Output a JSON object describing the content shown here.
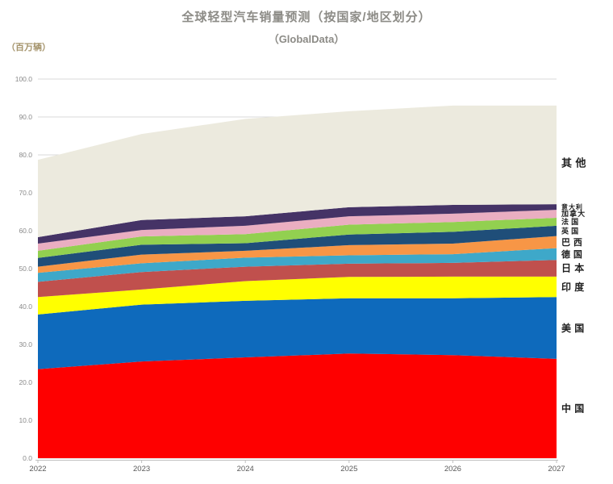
{
  "title": "全球轻型汽车销量预测（按国家/地区划分）",
  "subtitle": "（GlobalData）",
  "unit_label": "（百万辆）",
  "axis_colors": {
    "gridline": "#d9d9d9",
    "axis_line": "#bfbfbf",
    "ytick_text": "#8a8a8a",
    "xtick_text": "#595959",
    "series_label_text": "#1f1f1f"
  },
  "chart_data": {
    "type": "area",
    "stacked": true,
    "title": "全球轻型汽车销量预测（按国家/地区划分）",
    "subtitle": "（GlobalData）",
    "ylabel": "（百万辆）",
    "xlabel": "",
    "ylim": [
      0,
      100
    ],
    "ytick_step": 10,
    "ytick_labels": [
      "0.0",
      "10.0",
      "20.0",
      "30.0",
      "40.0",
      "50.0",
      "60.0",
      "70.0",
      "80.0",
      "90.0",
      "100.0"
    ],
    "grid": "horizontal",
    "legend_position": "right-edge-labels",
    "categories": [
      "2022",
      "2023",
      "2024",
      "2025",
      "2026",
      "2027"
    ],
    "series": [
      {
        "name": "中国",
        "color": "#fe0000",
        "values": [
          23.5,
          25.5,
          26.6,
          27.6,
          27.2,
          26.2
        ]
      },
      {
        "name": "美国",
        "color": "#0e6abc",
        "values": [
          14.4,
          15.0,
          14.9,
          14.6,
          15.0,
          16.3
        ]
      },
      {
        "name": "印度",
        "color": "#ffff00",
        "values": [
          4.6,
          4.0,
          5.2,
          5.6,
          5.7,
          5.4
        ]
      },
      {
        "name": "日本",
        "color": "#c0504d",
        "values": [
          4.0,
          4.6,
          3.8,
          3.5,
          3.6,
          4.4
        ]
      },
      {
        "name": "德国",
        "color": "#3ea8c9",
        "values": [
          2.4,
          2.3,
          2.4,
          2.2,
          2.3,
          3.1
        ]
      },
      {
        "name": "巴西",
        "color": "#f79646",
        "values": [
          1.6,
          2.3,
          1.8,
          2.7,
          2.8,
          3.2
        ]
      },
      {
        "name": "英国",
        "color": "#1f4e79",
        "values": [
          2.3,
          2.6,
          2.0,
          2.8,
          3.1,
          2.7
        ]
      },
      {
        "name": "法国",
        "color": "#92d050",
        "values": [
          1.9,
          2.2,
          2.4,
          2.6,
          2.6,
          2.1
        ]
      },
      {
        "name": "加拿大",
        "color": "#eaaec1",
        "values": [
          1.9,
          1.7,
          2.2,
          2.2,
          2.2,
          2.1
        ]
      },
      {
        "name": "意大利",
        "color": "#453366",
        "values": [
          1.7,
          2.6,
          2.5,
          2.4,
          2.3,
          1.5
        ]
      },
      {
        "name": "其他",
        "color": "#eceade",
        "values": [
          20.4,
          22.7,
          25.7,
          25.3,
          26.2,
          26.0
        ]
      }
    ]
  }
}
